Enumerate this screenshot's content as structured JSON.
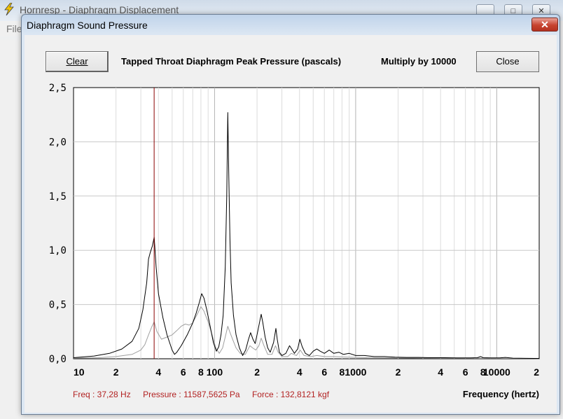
{
  "background_window": {
    "title": "Hornresp - Diaphragm Displacement",
    "menu": [
      "File"
    ],
    "controls": {
      "minimize": "_",
      "maximize": "□",
      "close": "✕"
    }
  },
  "dialog": {
    "title": "Diaphragm Sound Pressure",
    "close_glyph": "✕",
    "clear_label": "Clear",
    "close_label": "Close",
    "chart_title": "Tapped Throat Diaphragm Peak Pressure (pascals)",
    "multiply_label": "Multiply by 10000",
    "readout": {
      "freq": "Freq : 37,28 Hz",
      "pressure": "Pressure : 11587,5625 Pa",
      "force": "Force : 132,8121 kgf"
    },
    "xlabel": "Frequency (hertz)"
  },
  "colors": {
    "primary_trace": "#000000",
    "secondary_trace": "#a0a0a0",
    "cursor": "#8b0000",
    "readout_text": "#b22222"
  },
  "chart_data": {
    "type": "line",
    "title": "Tapped Throat Diaphragm Peak Pressure (pascals)",
    "xlabel": "Frequency (hertz)",
    "ylabel": "",
    "x_scale": "log",
    "xlim": [
      10,
      20000
    ],
    "ylim": [
      0,
      2.5
    ],
    "grid": true,
    "y_ticks": [
      "0,0",
      "0,5",
      "1,0",
      "1,5",
      "2,0",
      "2,5"
    ],
    "y_tick_values": [
      0,
      0.5,
      1.0,
      1.5,
      2.0,
      2.5
    ],
    "x_ticks": [
      "10",
      "2",
      "4",
      "6",
      "8",
      "100",
      "2",
      "4",
      "6",
      "8",
      "1000",
      "2",
      "4",
      "6",
      "8",
      "10000",
      "2"
    ],
    "x_tick_values": [
      10,
      20,
      40,
      60,
      80,
      100,
      200,
      400,
      600,
      800,
      1000,
      2000,
      4000,
      6000,
      8000,
      10000,
      20000
    ],
    "cursor_x": 37.28,
    "series": [
      {
        "points": [
          [
            10,
            0.01
          ],
          [
            14,
            0.025
          ],
          [
            18,
            0.05
          ],
          [
            22,
            0.09
          ],
          [
            26,
            0.16
          ],
          [
            29,
            0.28
          ],
          [
            31,
            0.45
          ],
          [
            33,
            0.7
          ],
          [
            34,
            0.92
          ],
          [
            35,
            0.98
          ],
          [
            36.2,
            1.04
          ],
          [
            37.3,
            1.12
          ],
          [
            38.5,
            0.85
          ],
          [
            40,
            0.6
          ],
          [
            43,
            0.38
          ],
          [
            46,
            0.22
          ],
          [
            50,
            0.08
          ],
          [
            52,
            0.04
          ],
          [
            54,
            0.06
          ],
          [
            58,
            0.12
          ],
          [
            64,
            0.22
          ],
          [
            70,
            0.33
          ],
          [
            74,
            0.42
          ],
          [
            78,
            0.52
          ],
          [
            81,
            0.6
          ],
          [
            84,
            0.56
          ],
          [
            88,
            0.45
          ],
          [
            93,
            0.3
          ],
          [
            98,
            0.15
          ],
          [
            103,
            0.07
          ],
          [
            107,
            0.11
          ],
          [
            111,
            0.22
          ],
          [
            115,
            0.4
          ],
          [
            119,
            0.85
          ],
          [
            122,
            1.5
          ],
          [
            124,
            2.27
          ],
          [
            126,
            1.7
          ],
          [
            128.5,
            1.1
          ],
          [
            131,
            0.7
          ],
          [
            136,
            0.4
          ],
          [
            142,
            0.22
          ],
          [
            150,
            0.1
          ],
          [
            158,
            0.03
          ],
          [
            166,
            0.08
          ],
          [
            174,
            0.18
          ],
          [
            180,
            0.24
          ],
          [
            187,
            0.18
          ],
          [
            194,
            0.14
          ],
          [
            202,
            0.25
          ],
          [
            210,
            0.36
          ],
          [
            214,
            0.41
          ],
          [
            220,
            0.33
          ],
          [
            228,
            0.2
          ],
          [
            238,
            0.1
          ],
          [
            248,
            0.06
          ],
          [
            262,
            0.15
          ],
          [
            272,
            0.28
          ],
          [
            278,
            0.18
          ],
          [
            288,
            0.06
          ],
          [
            300,
            0.03
          ],
          [
            320,
            0.05
          ],
          [
            340,
            0.12
          ],
          [
            352,
            0.09
          ],
          [
            368,
            0.05
          ],
          [
            388,
            0.09
          ],
          [
            402,
            0.18
          ],
          [
            418,
            0.11
          ],
          [
            440,
            0.05
          ],
          [
            470,
            0.03
          ],
          [
            500,
            0.07
          ],
          [
            530,
            0.09
          ],
          [
            560,
            0.07
          ],
          [
            600,
            0.05
          ],
          [
            650,
            0.08
          ],
          [
            700,
            0.05
          ],
          [
            760,
            0.06
          ],
          [
            820,
            0.04
          ],
          [
            900,
            0.05
          ],
          [
            1000,
            0.03
          ],
          [
            1150,
            0.03
          ],
          [
            1350,
            0.02
          ],
          [
            1600,
            0.02
          ],
          [
            1900,
            0.015
          ],
          [
            2300,
            0.012
          ],
          [
            2800,
            0.012
          ],
          [
            3400,
            0.01
          ],
          [
            4200,
            0.01
          ],
          [
            5200,
            0.008
          ],
          [
            6500,
            0.008
          ],
          [
            7300,
            0.01
          ],
          [
            7700,
            0.02
          ],
          [
            8000,
            0.01
          ],
          [
            9000,
            0.008
          ],
          [
            10500,
            0.008
          ],
          [
            11500,
            0.012
          ],
          [
            13000,
            0.006
          ],
          [
            16000,
            0.004
          ],
          [
            20000,
            0.003
          ]
        ]
      },
      {
        "points": [
          [
            10,
            0.005
          ],
          [
            15,
            0.01
          ],
          [
            20,
            0.02
          ],
          [
            26,
            0.04
          ],
          [
            30,
            0.08
          ],
          [
            32,
            0.13
          ],
          [
            34,
            0.22
          ],
          [
            36,
            0.3
          ],
          [
            37.3,
            0.34
          ],
          [
            39,
            0.25
          ],
          [
            42,
            0.18
          ],
          [
            46,
            0.2
          ],
          [
            50,
            0.22
          ],
          [
            54,
            0.26
          ],
          [
            58,
            0.3
          ],
          [
            62,
            0.32
          ],
          [
            66,
            0.31
          ],
          [
            70,
            0.33
          ],
          [
            76,
            0.42
          ],
          [
            80,
            0.48
          ],
          [
            84,
            0.44
          ],
          [
            90,
            0.34
          ],
          [
            96,
            0.22
          ],
          [
            102,
            0.1
          ],
          [
            108,
            0.05
          ],
          [
            114,
            0.1
          ],
          [
            120,
            0.22
          ],
          [
            124,
            0.3
          ],
          [
            128,
            0.25
          ],
          [
            134,
            0.18
          ],
          [
            142,
            0.1
          ],
          [
            152,
            0.05
          ],
          [
            165,
            0.04
          ],
          [
            178,
            0.12
          ],
          [
            186,
            0.1
          ],
          [
            196,
            0.08
          ],
          [
            206,
            0.12
          ],
          [
            214,
            0.19
          ],
          [
            224,
            0.12
          ],
          [
            238,
            0.04
          ],
          [
            255,
            0.04
          ],
          [
            270,
            0.12
          ],
          [
            282,
            0.06
          ],
          [
            300,
            0.02
          ],
          [
            330,
            0.02
          ],
          [
            350,
            0.05
          ],
          [
            380,
            0.03
          ],
          [
            405,
            0.08
          ],
          [
            430,
            0.03
          ],
          [
            480,
            0.02
          ],
          [
            530,
            0.03
          ],
          [
            600,
            0.02
          ],
          [
            700,
            0.02
          ],
          [
            900,
            0.015
          ],
          [
            1200,
            0.01
          ],
          [
            2000,
            0.007
          ],
          [
            4000,
            0.005
          ],
          [
            8000,
            0.004
          ],
          [
            20000,
            0.002
          ]
        ]
      }
    ]
  }
}
